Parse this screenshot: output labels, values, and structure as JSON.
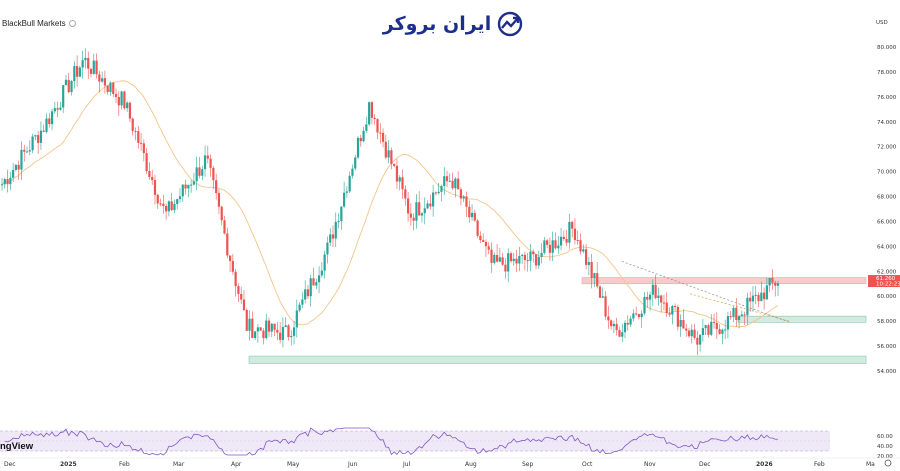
{
  "source_label": "BlackBull Markets",
  "logo_text": "ایران بروکر",
  "watermark_text": "ngView",
  "currency": "USD",
  "price_badge": {
    "value": "61.260",
    "timer": "10:22:23"
  },
  "colors": {
    "up": "#26a69a",
    "down": "#ef5350",
    "ma": "#f3c58a",
    "rsi": "#7e57c2"
  },
  "chart_data": [
    {
      "type": "candlestick",
      "x_ticks": [
        "Dec",
        "2025",
        "Feb",
        "Mar",
        "Apr",
        "May",
        "Jun",
        "Jul",
        "Aug",
        "Sep",
        "Oct",
        "Nov",
        "Dec",
        "2026",
        "Feb",
        "Ma"
      ],
      "y_ticks": [
        "54.000",
        "56.000",
        "58.000",
        "60.000",
        "62.000",
        "64.000",
        "66.000",
        "68.000",
        "70.000",
        "72.000",
        "74.000",
        "76.000",
        "78.000",
        "80.000"
      ],
      "ylim": [
        53.5,
        81.5
      ],
      "key_points": [
        {
          "month": "Dec",
          "price": 69.0
        },
        {
          "month": "2025",
          "price": 73.5
        },
        {
          "month": "mid-Jan",
          "price": 79.0
        },
        {
          "month": "Feb",
          "price": 75.5
        },
        {
          "month": "Mar",
          "price": 66.5
        },
        {
          "month": "early Apr",
          "price": 71.0
        },
        {
          "month": "Apr",
          "price": 57.5
        },
        {
          "month": "May",
          "price": 57.0
        },
        {
          "month": "Jun",
          "price": 64.0
        },
        {
          "month": "late Jun",
          "price": 75.5
        },
        {
          "month": "Jul",
          "price": 66.5
        },
        {
          "month": "Aug",
          "price": 69.5
        },
        {
          "month": "mid Aug",
          "price": 62.5
        },
        {
          "month": "Sep",
          "price": 63.0
        },
        {
          "month": "Oct",
          "price": 65.5
        },
        {
          "month": "mid Oct",
          "price": 57.0
        },
        {
          "month": "Nov",
          "price": 60.5
        },
        {
          "month": "Dec",
          "price": 56.5
        },
        {
          "month": "2026",
          "price": 58.5
        },
        {
          "month": "late Jan",
          "price": 61.3
        }
      ],
      "moving_average": "yes",
      "zones": [
        {
          "name": "resistance",
          "from": 61.0,
          "to": 61.5,
          "color": "#f7c6c6"
        },
        {
          "name": "support-upper",
          "from": 57.9,
          "to": 58.4,
          "color": "#cde9dc"
        },
        {
          "name": "support-lower",
          "from": 54.6,
          "to": 55.2,
          "color": "#cde9dc"
        }
      ]
    },
    {
      "type": "line",
      "name": "RSI",
      "y_ticks": [
        "20.00",
        "40.00",
        "60.00"
      ],
      "ylim": [
        15,
        80
      ],
      "band": [
        30,
        70
      ]
    }
  ]
}
